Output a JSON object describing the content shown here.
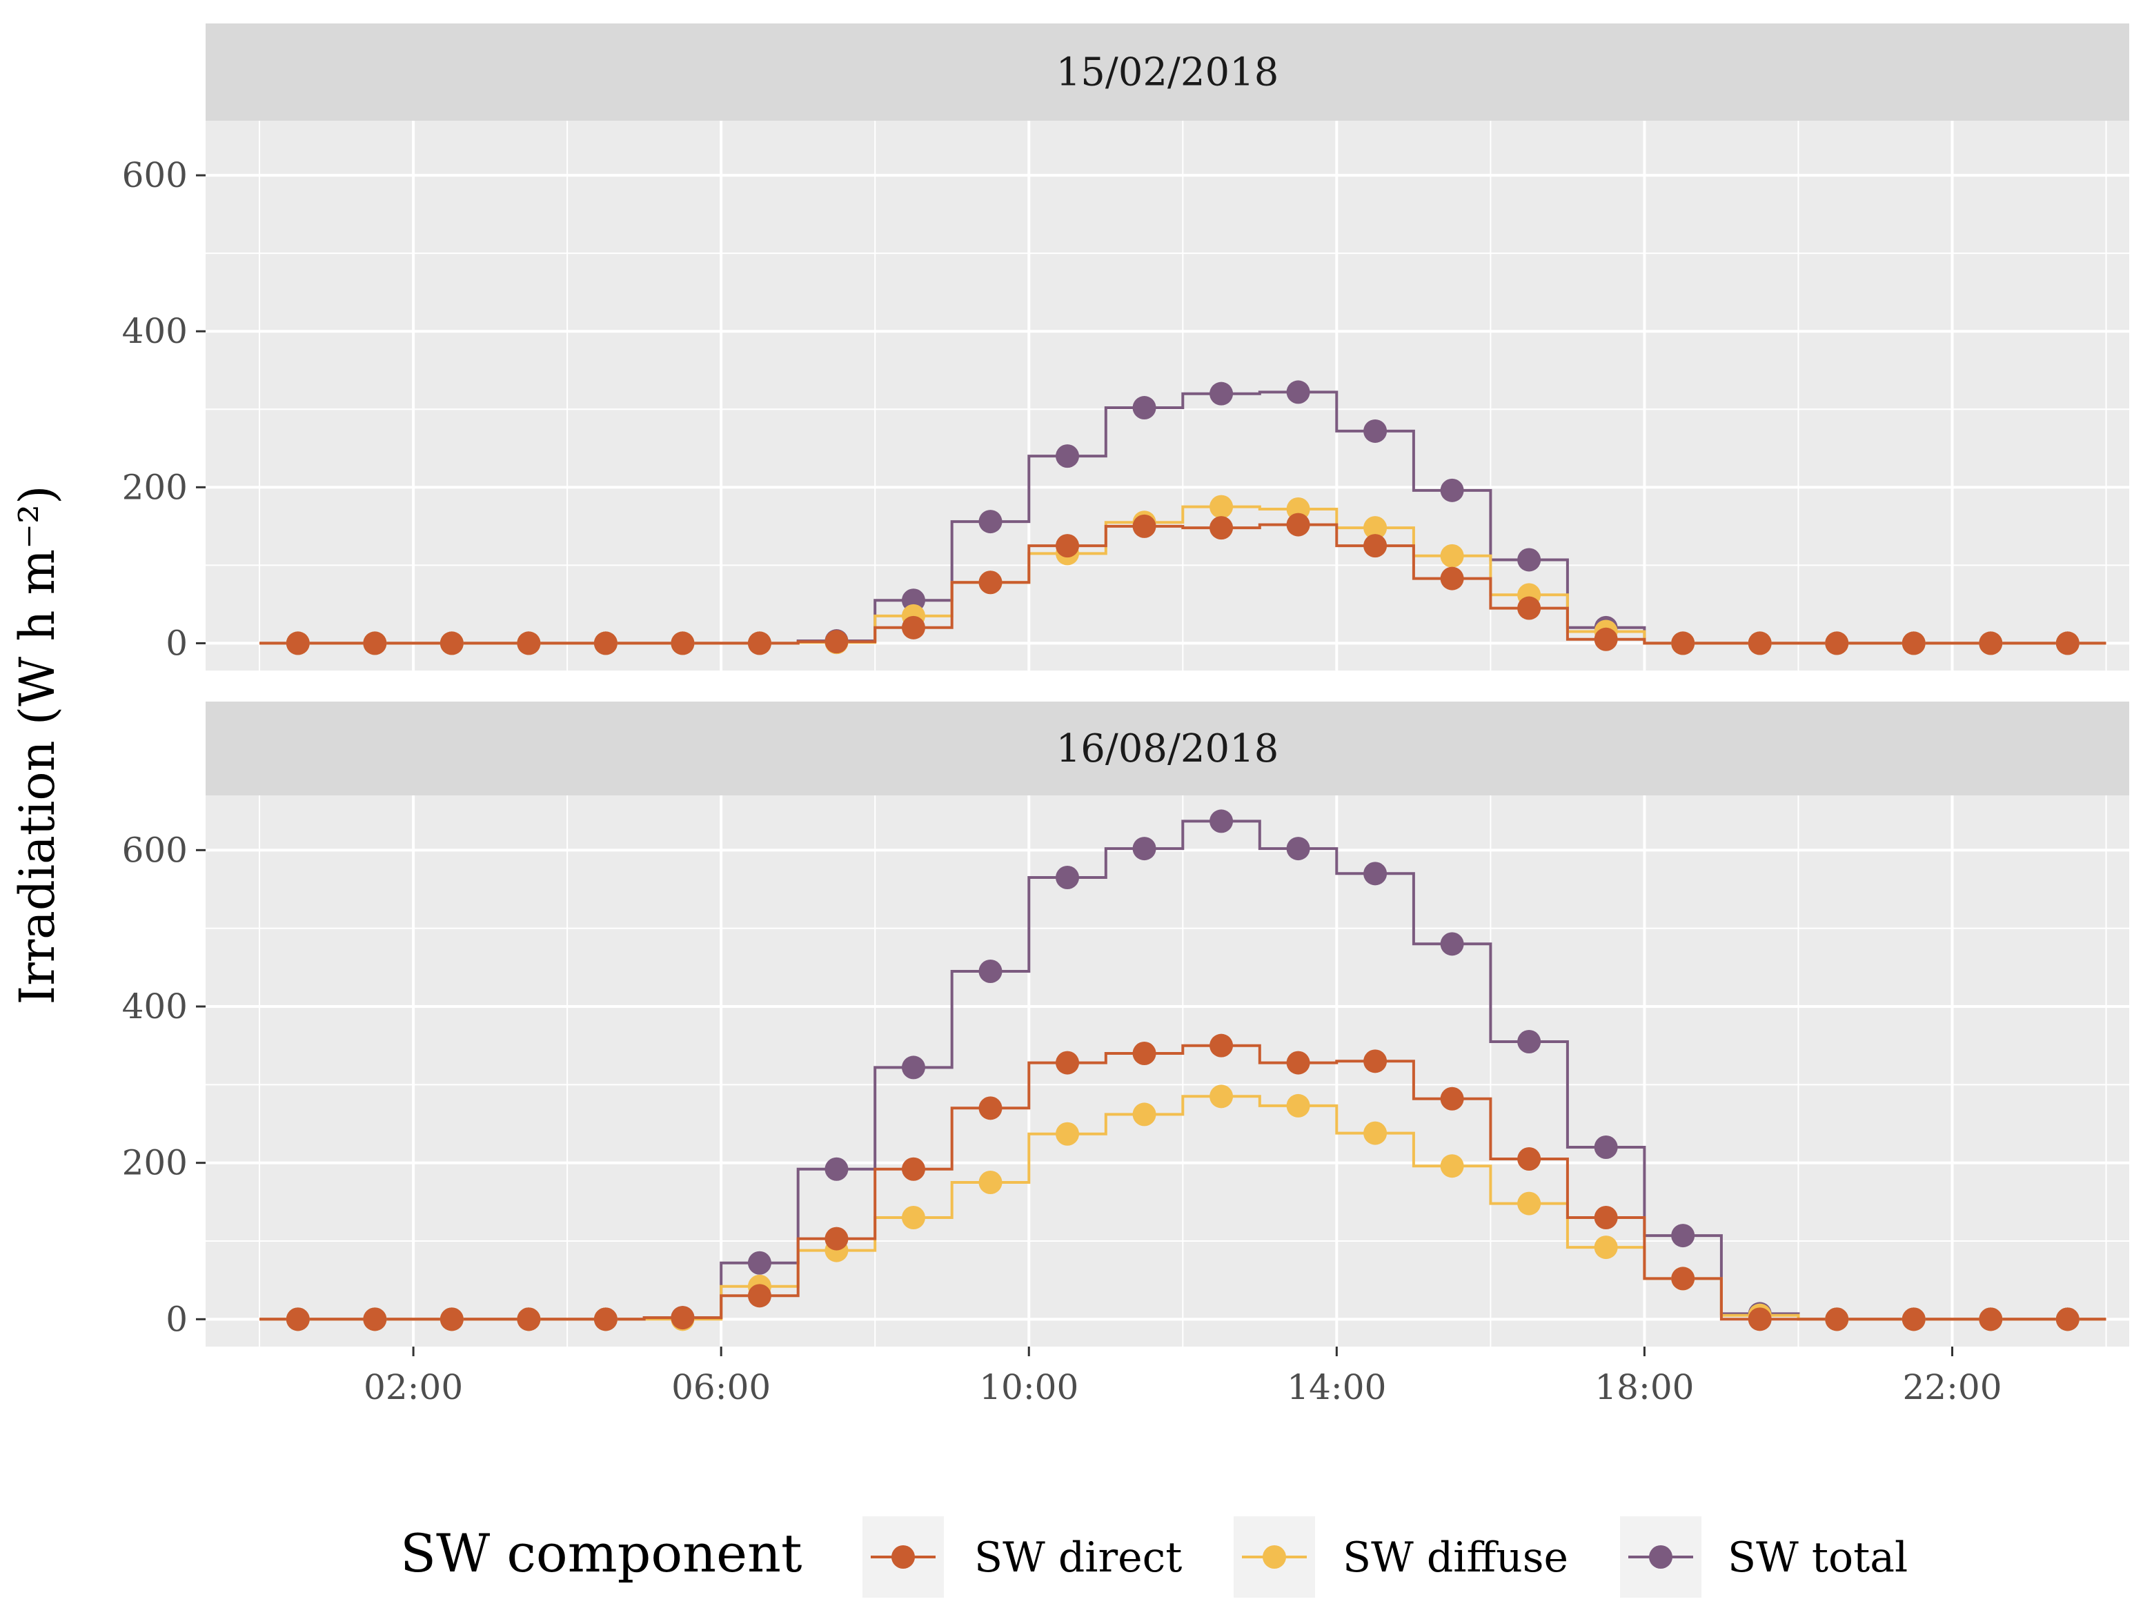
{
  "chart_data": {
    "type": "line",
    "style": "step-with-points",
    "ylabel": "Irradiation (W h m⁻²)",
    "xlabel": "",
    "x_ticks": [
      "02:00",
      "06:00",
      "10:00",
      "14:00",
      "18:00",
      "22:00"
    ],
    "x_tick_hours": [
      2,
      6,
      10,
      14,
      18,
      22
    ],
    "xlim": [
      -0.7,
      24.3
    ],
    "y_ticks": [
      0,
      200,
      400,
      600
    ],
    "ylim": [
      -35,
      670
    ],
    "grid": true,
    "legend": {
      "title": "SW component",
      "position": "bottom",
      "entries": [
        "SW direct",
        "SW diffuse",
        "SW total"
      ]
    },
    "colors": {
      "SW direct": "#C95C2E",
      "SW diffuse": "#F3BE4F",
      "SW total": "#7B5A7F",
      "panel_bg": "#EBEBEB",
      "strip_bg": "#D9D9D9",
      "grid": "#FFFFFF"
    },
    "x": [
      0.5,
      1.5,
      2.5,
      3.5,
      4.5,
      5.5,
      6.5,
      7.5,
      8.5,
      9.5,
      10.5,
      11.5,
      12.5,
      13.5,
      14.5,
      15.5,
      16.5,
      17.5,
      18.5,
      19.5,
      20.5,
      21.5,
      22.5,
      23.5
    ],
    "panels": [
      {
        "label": "15/02/2018",
        "series": [
          {
            "name": "SW direct",
            "values": [
              0,
              0,
              0,
              0,
              0,
              0,
              0,
              2,
              20,
              78,
              125,
              150,
              148,
              152,
              125,
              83,
              45,
              5,
              0,
              0,
              0,
              0,
              0,
              0
            ]
          },
          {
            "name": "SW diffuse",
            "values": [
              0,
              0,
              0,
              0,
              0,
              0,
              0,
              1,
              35,
              78,
              115,
              155,
              175,
              172,
              148,
              112,
              62,
              15,
              0,
              0,
              0,
              0,
              0,
              0
            ]
          },
          {
            "name": "SW total",
            "values": [
              0,
              0,
              0,
              0,
              0,
              0,
              0,
              3,
              55,
              156,
              240,
              302,
              320,
              322,
              272,
              196,
              107,
              20,
              0,
              0,
              0,
              0,
              0,
              0
            ]
          }
        ]
      },
      {
        "label": "16/08/2018",
        "series": [
          {
            "name": "SW direct",
            "values": [
              0,
              0,
              0,
              0,
              0,
              2,
              30,
              103,
              192,
              270,
              328,
              340,
              350,
              328,
              330,
              282,
              205,
              130,
              52,
              0,
              0,
              0,
              0,
              0
            ]
          },
          {
            "name": "SW diffuse",
            "values": [
              0,
              0,
              0,
              0,
              0,
              0,
              42,
              88,
              130,
              175,
              237,
              262,
              285,
              273,
              238,
              196,
              148,
              92,
              52,
              5,
              0,
              0,
              0,
              0
            ]
          },
          {
            "name": "SW total",
            "values": [
              0,
              0,
              0,
              0,
              0,
              2,
              72,
              192,
              322,
              445,
              565,
              602,
              637,
              602,
              570,
              480,
              355,
              220,
              107,
              7,
              0,
              0,
              0,
              0
            ]
          }
        ]
      }
    ]
  }
}
